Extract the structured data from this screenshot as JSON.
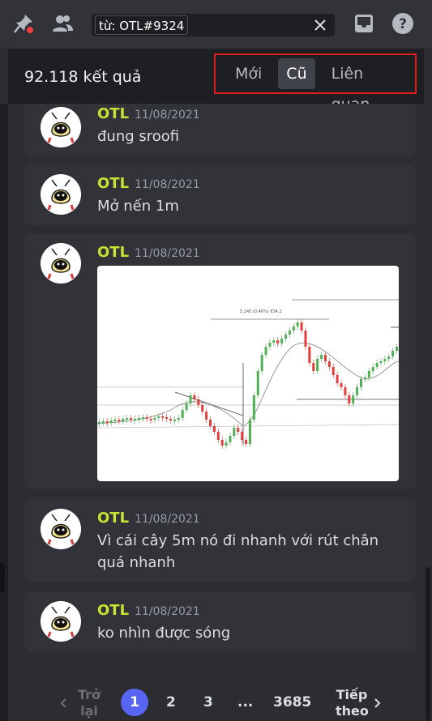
{
  "toolbar": {
    "search_query": "từ: OTL#9324"
  },
  "results": {
    "count_text": "92.118 kết quả",
    "sort_tabs": [
      "Mới",
      "Cũ",
      "Liên quan"
    ],
    "active_sort": "Cũ"
  },
  "messages": [
    {
      "author": "OTL",
      "timestamp": "11/08/2021",
      "text": "đung sroofi"
    },
    {
      "author": "OTL",
      "timestamp": "11/08/2021",
      "text": "Mở nến 1m"
    },
    {
      "author": "OTL",
      "timestamp": "11/08/2021",
      "text": "",
      "has_image": true,
      "image_caption": "5,145 (0.46%) 834.2"
    },
    {
      "author": "OTL",
      "timestamp": "11/08/2021",
      "text": "Vì cái cây 5m nó đi nhanh với rút chân quá nhanh"
    },
    {
      "author": "OTL",
      "timestamp": "11/08/2021",
      "text": "ko nhìn được sóng"
    }
  ],
  "pager": {
    "prev_label": "Trở lại",
    "next_label": "Tiếp theo",
    "pages": [
      "1",
      "2",
      "3",
      "...",
      "3685"
    ],
    "current": "1"
  },
  "colors": {
    "accent": "#5865f2",
    "author_name": "#c7e332",
    "highlight_border": "#e01b1b"
  }
}
